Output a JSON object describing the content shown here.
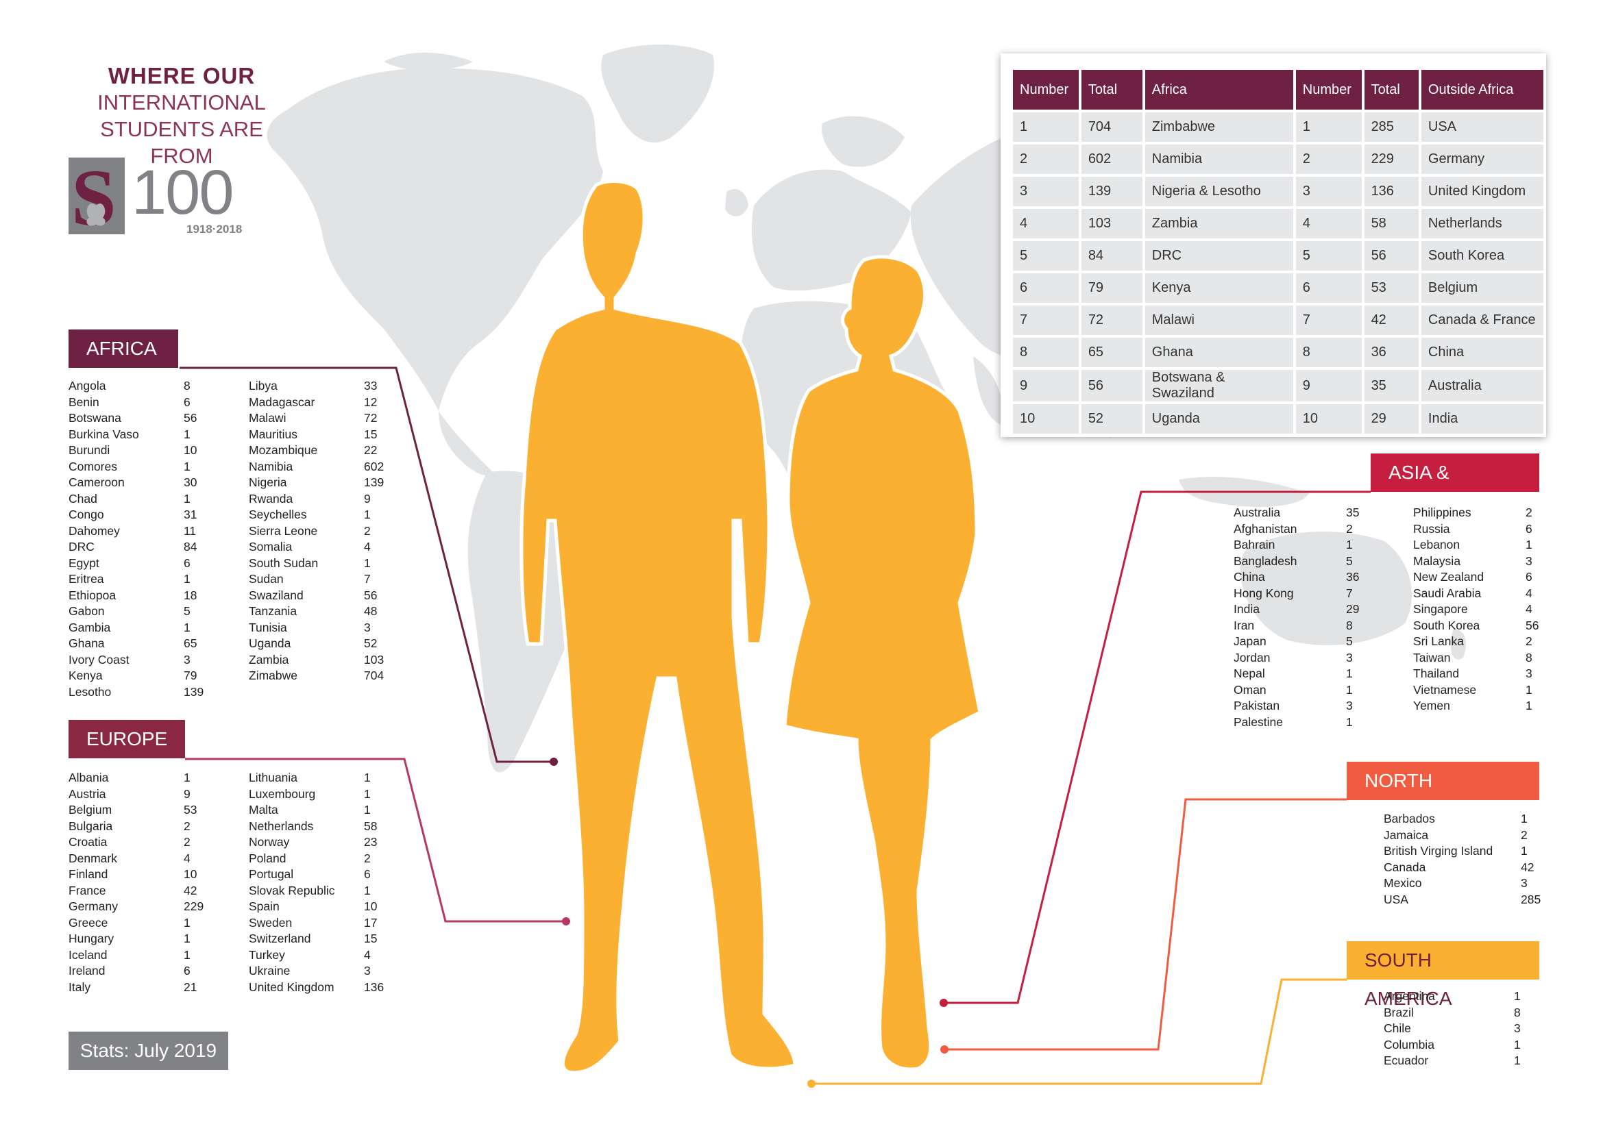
{
  "title": {
    "line1": "WHERE OUR",
    "line2": "INTERNATIONAL",
    "line3": "STUDENTS ARE FROM"
  },
  "logo": {
    "mark": "S",
    "number": "100",
    "years": "1918·2018"
  },
  "colors": {
    "maroon": "#6e2140",
    "dark_purple": "#561843",
    "wine": "#8b2841",
    "crimson": "#c61e3e",
    "orange": "#f15b3f",
    "amber": "#fbb032",
    "grey": "#808285",
    "map": "#e2e3e5"
  },
  "africa": {
    "label": "AFRICA",
    "col1": [
      {
        "name": "Angola",
        "value": "8"
      },
      {
        "name": "Benin",
        "value": "6"
      },
      {
        "name": "Botswana",
        "value": "56"
      },
      {
        "name": "Burkina Vaso",
        "value": "1"
      },
      {
        "name": "Burundi",
        "value": "10"
      },
      {
        "name": "Comores",
        "value": "1"
      },
      {
        "name": "Cameroon",
        "value": "30"
      },
      {
        "name": "Chad",
        "value": "1"
      },
      {
        "name": "Congo",
        "value": "31"
      },
      {
        "name": "Dahomey",
        "value": "11"
      },
      {
        "name": "DRC",
        "value": "84"
      },
      {
        "name": "Egypt",
        "value": "6"
      },
      {
        "name": "Eritrea",
        "value": "1"
      },
      {
        "name": "Ethiopoa",
        "value": "18"
      },
      {
        "name": "Gabon",
        "value": "5"
      },
      {
        "name": "Gambia",
        "value": "1"
      },
      {
        "name": "Ghana",
        "value": "65"
      },
      {
        "name": "Ivory Coast",
        "value": "3"
      },
      {
        "name": "Kenya",
        "value": "79"
      },
      {
        "name": "Lesotho",
        "value": "139"
      }
    ],
    "col2": [
      {
        "name": "Libya",
        "value": "33"
      },
      {
        "name": "Madagascar",
        "value": "12"
      },
      {
        "name": "Malawi",
        "value": "72"
      },
      {
        "name": "Mauritius",
        "value": "15"
      },
      {
        "name": "Mozambique",
        "value": "22"
      },
      {
        "name": "Namibia",
        "value": "602"
      },
      {
        "name": "Nigeria",
        "value": "139"
      },
      {
        "name": "Rwanda",
        "value": "9"
      },
      {
        "name": "Seychelles",
        "value": "1"
      },
      {
        "name": "Sierra Leone",
        "value": "2"
      },
      {
        "name": "Somalia",
        "value": "4"
      },
      {
        "name": "South Sudan",
        "value": "1"
      },
      {
        "name": "Sudan",
        "value": "7"
      },
      {
        "name": "Swaziland",
        "value": "56"
      },
      {
        "name": "Tanzania",
        "value": "48"
      },
      {
        "name": "Tunisia",
        "value": "3"
      },
      {
        "name": "Uganda",
        "value": "52"
      },
      {
        "name": "Zambia",
        "value": "103"
      },
      {
        "name": "Zimabwe",
        "value": "704"
      }
    ]
  },
  "europe": {
    "label": "EUROPE",
    "col1": [
      {
        "name": "Albania",
        "value": "1"
      },
      {
        "name": "Austria",
        "value": "9"
      },
      {
        "name": "Belgium",
        "value": "53"
      },
      {
        "name": "Bulgaria",
        "value": "2"
      },
      {
        "name": "Croatia",
        "value": "2"
      },
      {
        "name": "Denmark",
        "value": "4"
      },
      {
        "name": "Finland",
        "value": "10"
      },
      {
        "name": "France",
        "value": "42"
      },
      {
        "name": "Germany",
        "value": "229"
      },
      {
        "name": "Greece",
        "value": "1"
      },
      {
        "name": "Hungary",
        "value": "1"
      },
      {
        "name": "Iceland",
        "value": "1"
      },
      {
        "name": "Ireland",
        "value": "6"
      },
      {
        "name": "Italy",
        "value": "21"
      }
    ],
    "col2": [
      {
        "name": "Lithuania",
        "value": "1"
      },
      {
        "name": "Luxembourg",
        "value": "1"
      },
      {
        "name": "Malta",
        "value": "1"
      },
      {
        "name": "Netherlands",
        "value": "58"
      },
      {
        "name": "Norway",
        "value": "23"
      },
      {
        "name": "Poland",
        "value": "2"
      },
      {
        "name": "Portugal",
        "value": "6"
      },
      {
        "name": "Slovak Republic",
        "value": "1"
      },
      {
        "name": "Spain",
        "value": "10"
      },
      {
        "name": "Sweden",
        "value": "17"
      },
      {
        "name": "Switzerland",
        "value": "15"
      },
      {
        "name": "Turkey",
        "value": "4"
      },
      {
        "name": "Ukraine",
        "value": "3"
      },
      {
        "name": "United Kingdom",
        "value": "136"
      }
    ]
  },
  "asia": {
    "label": "ASIA & PACIFIC",
    "col1": [
      {
        "name": "Australia",
        "value": "35"
      },
      {
        "name": "Afghanistan",
        "value": "2"
      },
      {
        "name": "Bahrain",
        "value": "1"
      },
      {
        "name": "Bangladesh",
        "value": "5"
      },
      {
        "name": "China",
        "value": "36"
      },
      {
        "name": "Hong Kong",
        "value": "7"
      },
      {
        "name": "India",
        "value": "29"
      },
      {
        "name": "Iran",
        "value": "8"
      },
      {
        "name": "Japan",
        "value": "5"
      },
      {
        "name": "Jordan",
        "value": "3"
      },
      {
        "name": "Nepal",
        "value": "1"
      },
      {
        "name": "Oman",
        "value": "1"
      },
      {
        "name": "Pakistan",
        "value": "3"
      },
      {
        "name": "Palestine",
        "value": "1"
      }
    ],
    "col2": [
      {
        "name": "Philippines",
        "value": "2"
      },
      {
        "name": "Russia",
        "value": "6"
      },
      {
        "name": "Lebanon",
        "value": "1"
      },
      {
        "name": "Malaysia",
        "value": "3"
      },
      {
        "name": "New Zealand",
        "value": "6"
      },
      {
        "name": "Saudi Arabia",
        "value": "4"
      },
      {
        "name": "Singapore",
        "value": "4"
      },
      {
        "name": "South Korea",
        "value": "56"
      },
      {
        "name": "Sri Lanka",
        "value": "2"
      },
      {
        "name": "Taiwan",
        "value": "8"
      },
      {
        "name": "Thailand",
        "value": "3"
      },
      {
        "name": "Vietnamese",
        "value": "1"
      },
      {
        "name": "Yemen",
        "value": "1"
      }
    ]
  },
  "north_america": {
    "label": "NORTH AMERICA",
    "col1": [
      {
        "name": "Barbados",
        "value": "1"
      },
      {
        "name": "Jamaica",
        "value": "2"
      },
      {
        "name": "British Virging Island",
        "value": "1"
      },
      {
        "name": "Canada",
        "value": "42"
      },
      {
        "name": "Mexico",
        "value": "3"
      },
      {
        "name": "USA",
        "value": "285"
      }
    ]
  },
  "south_america": {
    "label": "SOUTH AMERICA",
    "col1": [
      {
        "name": "Argentina",
        "value": "1"
      },
      {
        "name": "Brazil",
        "value": "8"
      },
      {
        "name": "Chile",
        "value": "3"
      },
      {
        "name": "Columbia",
        "value": "1"
      },
      {
        "name": "Ecuador",
        "value": "1"
      }
    ]
  },
  "stats": "Stats: July 2019",
  "top10": {
    "headers": [
      "Number",
      "Total",
      "Africa",
      "Number",
      "Total",
      "Outside Africa"
    ],
    "rows": [
      [
        "1",
        "704",
        "Zimbabwe",
        "1",
        "285",
        "USA"
      ],
      [
        "2",
        "602",
        "Namibia",
        "2",
        "229",
        "Germany"
      ],
      [
        "3",
        "139",
        "Nigeria & Lesotho",
        "3",
        "136",
        "United Kingdom"
      ],
      [
        "4",
        "103",
        "Zambia",
        "4",
        "58",
        "Netherlands"
      ],
      [
        "5",
        "84",
        "DRC",
        "5",
        "56",
        "South Korea"
      ],
      [
        "6",
        "79",
        "Kenya",
        "6",
        "53",
        "Belgium"
      ],
      [
        "7",
        "72",
        "Malawi",
        "7",
        "42",
        "Canada & France"
      ],
      [
        "8",
        "65",
        "Ghana",
        "8",
        "36",
        "China"
      ],
      [
        "9",
        "56",
        "Botswana & Swaziland",
        "9",
        "35",
        "Australia"
      ],
      [
        "10",
        "52",
        "Uganda",
        "10",
        "29",
        "India"
      ]
    ]
  }
}
